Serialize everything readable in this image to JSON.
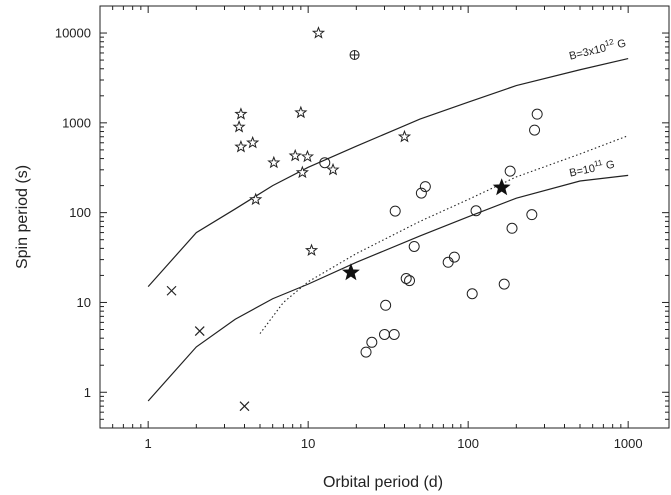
{
  "chart_data": {
    "type": "scatter",
    "xlabel": "Orbital period (d)",
    "ylabel": "Spin period (s)",
    "xscale": "log",
    "yscale": "log",
    "xlim": [
      0.5,
      1800
    ],
    "ylim": [
      0.4,
      20000
    ],
    "xticks": [
      {
        "value": 1,
        "label": "1"
      },
      {
        "value": 10,
        "label": "10"
      },
      {
        "value": 100,
        "label": "100"
      },
      {
        "value": 1000,
        "label": "1000"
      }
    ],
    "yticks": [
      {
        "value": 1,
        "label": "1"
      },
      {
        "value": 10,
        "label": "10"
      },
      {
        "value": 100,
        "label": "100"
      },
      {
        "value": 1000,
        "label": "1000"
      },
      {
        "value": 10000,
        "label": "10000"
      }
    ],
    "grid": false,
    "legend": "none",
    "curves": [
      {
        "label_base": "B=3x10",
        "label_exp": "12",
        "label_unit": "G",
        "style": "solid",
        "x": [
          1,
          2,
          3.5,
          6,
          10,
          20,
          50,
          100,
          200,
          500,
          1000
        ],
        "y": [
          15,
          60,
          110,
          200,
          320,
          550,
          1100,
          1700,
          2600,
          3900,
          5200
        ]
      },
      {
        "label_base": "B=10",
        "label_exp": "11",
        "label_unit": "G",
        "style": "solid",
        "x": [
          1,
          2,
          3.5,
          6,
          10,
          20,
          50,
          100,
          200,
          500,
          1000
        ],
        "y": [
          0.8,
          3.2,
          6.5,
          11,
          16,
          28,
          55,
          90,
          145,
          225,
          260
        ]
      },
      {
        "style": "dotted",
        "x": [
          5,
          7,
          10,
          20,
          50,
          100,
          200,
          500,
          1000
        ],
        "y": [
          4.5,
          10,
          17,
          35,
          80,
          140,
          250,
          450,
          720
        ]
      }
    ],
    "series": [
      {
        "marker": "open-star",
        "points": [
          {
            "x": 3.8,
            "y": 1250
          },
          {
            "x": 3.7,
            "y": 900
          },
          {
            "x": 4.5,
            "y": 600
          },
          {
            "x": 3.8,
            "y": 540
          },
          {
            "x": 6.1,
            "y": 360
          },
          {
            "x": 8.3,
            "y": 430
          },
          {
            "x": 9.9,
            "y": 420
          },
          {
            "x": 9.2,
            "y": 280
          },
          {
            "x": 14.3,
            "y": 300
          },
          {
            "x": 9.0,
            "y": 1300
          },
          {
            "x": 4.7,
            "y": 140
          },
          {
            "x": 40,
            "y": 700
          },
          {
            "x": 10.5,
            "y": 38
          },
          {
            "x": 11.6,
            "y": 10000
          }
        ]
      },
      {
        "marker": "open-circle",
        "points": [
          {
            "x": 12.7,
            "y": 360
          },
          {
            "x": 35,
            "y": 104
          },
          {
            "x": 51,
            "y": 165
          },
          {
            "x": 54,
            "y": 195
          },
          {
            "x": 46,
            "y": 42
          },
          {
            "x": 112,
            "y": 105
          },
          {
            "x": 41,
            "y": 18.5
          },
          {
            "x": 43,
            "y": 17.5
          },
          {
            "x": 75,
            "y": 28
          },
          {
            "x": 82,
            "y": 32
          },
          {
            "x": 106,
            "y": 12.5
          },
          {
            "x": 168,
            "y": 16
          },
          {
            "x": 30.5,
            "y": 9.3
          },
          {
            "x": 30,
            "y": 4.4
          },
          {
            "x": 34.5,
            "y": 4.4
          },
          {
            "x": 25,
            "y": 3.6
          },
          {
            "x": 23,
            "y": 2.8
          },
          {
            "x": 183,
            "y": 290
          },
          {
            "x": 250,
            "y": 95
          },
          {
            "x": 260,
            "y": 830
          },
          {
            "x": 270,
            "y": 1250
          },
          {
            "x": 188,
            "y": 67
          }
        ]
      },
      {
        "marker": "filled-star",
        "points": [
          {
            "x": 18.5,
            "y": 21.5
          },
          {
            "x": 162,
            "y": 190
          }
        ]
      },
      {
        "marker": "cross",
        "points": [
          {
            "x": 1.4,
            "y": 13.5
          },
          {
            "x": 2.1,
            "y": 4.8
          },
          {
            "x": 4.0,
            "y": 0.7
          }
        ]
      },
      {
        "marker": "circle-plus",
        "points": [
          {
            "x": 19.5,
            "y": 5700
          }
        ]
      }
    ]
  }
}
